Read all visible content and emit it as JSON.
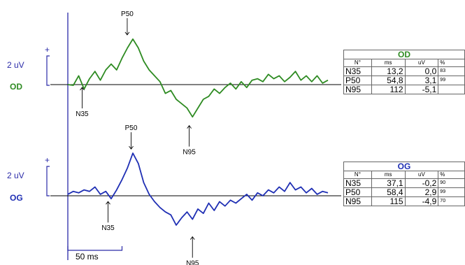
{
  "colors": {
    "od": "#2e8b22",
    "og": "#1f2fb4",
    "axis": "#2a2aa8",
    "text": "#000000"
  },
  "chart_data": {
    "type": "line",
    "series": [
      {
        "name": "OD",
        "x": [
          0,
          5,
          10,
          15,
          20,
          25,
          30,
          35,
          40,
          45,
          50,
          55,
          60,
          65,
          70,
          75,
          80,
          85,
          90,
          95,
          100,
          105,
          110,
          115,
          120,
          125,
          130,
          135,
          140,
          145,
          150,
          155,
          160,
          165,
          170,
          175,
          180,
          185,
          190,
          195,
          200,
          205,
          210,
          215,
          220,
          225,
          230,
          235,
          240
        ],
        "y": [
          0.0,
          -0.05,
          0.6,
          -0.3,
          0.4,
          0.9,
          0.3,
          1.0,
          1.4,
          1.0,
          1.8,
          2.5,
          3.1,
          2.5,
          1.6,
          1.0,
          0.6,
          0.2,
          -0.6,
          -0.4,
          -1.0,
          -1.3,
          -1.6,
          -2.2,
          -1.6,
          -1.0,
          -0.8,
          -0.3,
          -0.6,
          -0.2,
          0.1,
          -0.3,
          0.2,
          -0.2,
          0.3,
          0.4,
          0.2,
          0.7,
          0.4,
          0.6,
          0.2,
          0.5,
          0.9,
          0.3,
          0.6,
          0.2,
          0.6,
          0.1,
          0.3
        ]
      },
      {
        "name": "OG",
        "x": [
          0,
          5,
          10,
          15,
          20,
          25,
          30,
          35,
          40,
          45,
          50,
          55,
          60,
          65,
          70,
          75,
          80,
          85,
          90,
          95,
          100,
          105,
          110,
          115,
          120,
          125,
          130,
          135,
          140,
          145,
          150,
          155,
          160,
          165,
          170,
          175,
          180,
          185,
          190,
          195,
          200,
          205,
          210,
          215,
          220,
          225,
          230,
          235,
          240
        ],
        "y": [
          0.1,
          0.3,
          0.2,
          0.4,
          0.3,
          0.6,
          0.1,
          0.3,
          -0.2,
          0.4,
          1.1,
          1.9,
          2.9,
          2.2,
          0.9,
          0.1,
          -0.4,
          -0.8,
          -1.1,
          -1.3,
          -2.0,
          -1.5,
          -1.1,
          -1.6,
          -0.9,
          -1.2,
          -0.5,
          -1.0,
          -0.4,
          -0.7,
          -0.3,
          -0.5,
          -0.2,
          0.1,
          -0.3,
          0.2,
          0.0,
          0.4,
          0.2,
          0.6,
          0.3,
          0.9,
          0.4,
          0.6,
          0.2,
          0.5,
          0.1,
          0.3,
          0.2
        ]
      }
    ],
    "annotations_od": [
      {
        "label": "N35",
        "x": 13.2,
        "y": 0.0,
        "dir": "up"
      },
      {
        "label": "P50",
        "x": 54.8,
        "y": 3.1,
        "dir": "down"
      },
      {
        "label": "N95",
        "x": 112,
        "y": -5.1,
        "dir": "up"
      }
    ],
    "annotations_og": [
      {
        "label": "N35",
        "x": 37.1,
        "y": -0.2,
        "dir": "up"
      },
      {
        "label": "P50",
        "x": 58.4,
        "y": 2.9,
        "dir": "down"
      },
      {
        "label": "N95",
        "x": 115,
        "y": -4.9,
        "dir": "up"
      }
    ],
    "scale_bars": {
      "amplitude_label": "2 uV",
      "plus_label": "+",
      "time_label": "50 ms"
    },
    "channel_labels": [
      "OD",
      "OG"
    ],
    "grid": false
  },
  "tables": [
    {
      "title": "OD",
      "headers": [
        "N°",
        "ms",
        "uV",
        "%"
      ],
      "rows": [
        [
          "N35",
          "13,2",
          "0,0",
          "83"
        ],
        [
          "P50",
          "54,8",
          "3,1",
          "99"
        ],
        [
          "N95",
          "112",
          "-5,1",
          ""
        ]
      ]
    },
    {
      "title": "OG",
      "headers": [
        "N°",
        "ms",
        "uV",
        "%"
      ],
      "rows": [
        [
          "N35",
          "37,1",
          "-0,2",
          "90"
        ],
        [
          "P50",
          "58,4",
          "2,9",
          "99"
        ],
        [
          "N95",
          "115",
          "-4,9",
          "70"
        ]
      ]
    }
  ]
}
